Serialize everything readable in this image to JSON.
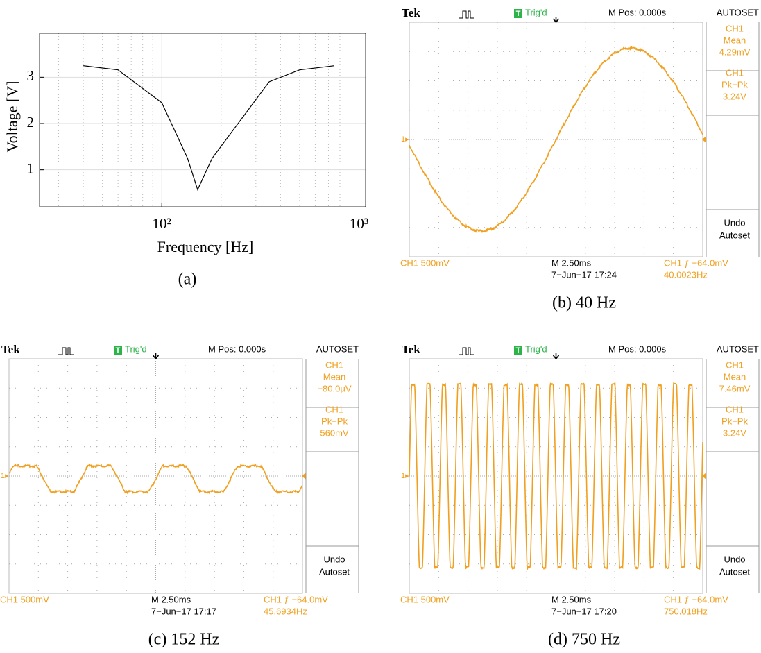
{
  "chart_data": {
    "type": "line",
    "x_label": "Frequency [Hz]",
    "y_label": "Voltage [V]",
    "caption": "(a)",
    "x": [
      40,
      60,
      100,
      135,
      152,
      180,
      350,
      500,
      750
    ],
    "values": [
      3.25,
      3.16,
      2.45,
      1.25,
      0.57,
      1.25,
      2.9,
      3.16,
      3.25
    ],
    "color": "#000000",
    "xlog": true,
    "xlim": [
      24,
      1080
    ],
    "ylim": [
      0.2,
      3.95
    ],
    "xticks": [
      {
        "value": 100,
        "label": "10²"
      },
      {
        "value": 1000,
        "label": "10³"
      }
    ],
    "xminor": [
      30,
      40,
      50,
      60,
      70,
      80,
      90,
      200,
      300,
      400,
      500,
      600,
      700,
      800,
      900
    ],
    "yticks": [
      1,
      2,
      3
    ],
    "grid": true
  },
  "scopes": [
    {
      "caption": "(b) 40 Hz",
      "brand": "Tek",
      "trigger_icon": "T",
      "trigger_state": "Trig'd",
      "position": "M Pos: 0.000s",
      "menu_title": "AUTOSET",
      "readouts": [
        [
          "CH1",
          "Mean",
          "4.29mV"
        ],
        [
          "CH1",
          "Pk−Pk",
          "3.24V"
        ]
      ],
      "undo": [
        "Undo",
        "Autoset"
      ],
      "channel_marker": "1▸",
      "channel_scale": "CH1  500mV",
      "timebase": "M 2.50ms",
      "timestamp": "7−Jun−17 17:24",
      "trigger_level": "CH1 ƒ −64.0mV",
      "frequency": "40.0023Hz"
    },
    {
      "caption": "(c) 152 Hz",
      "brand": "Tek",
      "trigger_icon": "T",
      "trigger_state": "Trig'd",
      "position": "M Pos: 0.000s",
      "menu_title": "AUTOSET",
      "readouts": [
        [
          "CH1",
          "Mean",
          "−80.0μV"
        ],
        [
          "CH1",
          "Pk−Pk",
          "560mV"
        ]
      ],
      "undo": [
        "Undo",
        "Autoset"
      ],
      "channel_marker": "1▸",
      "channel_scale": "CH1  500mV",
      "timebase": "M 2.50ms",
      "timestamp": "7−Jun−17 17:17",
      "trigger_level": "CH1 ƒ −64.0mV",
      "frequency": "45.6934Hz"
    },
    {
      "caption": "(d) 750 Hz",
      "brand": "Tek",
      "trigger_icon": "T",
      "trigger_state": "Trig'd",
      "position": "M Pos: 0.000s",
      "menu_title": "AUTOSET",
      "readouts": [
        [
          "CH1",
          "Mean",
          "7.46mV"
        ],
        [
          "CH1",
          "Pk−Pk",
          "3.24V"
        ]
      ],
      "undo": [
        "Undo",
        "Autoset"
      ],
      "channel_marker": "1▸",
      "channel_scale": "CH1  500mV",
      "timebase": "M 2.50ms",
      "timestamp": "7−Jun−17 17:20",
      "trigger_level": "CH1 ƒ −64.0mV",
      "frequency": "750.018Hz"
    }
  ]
}
